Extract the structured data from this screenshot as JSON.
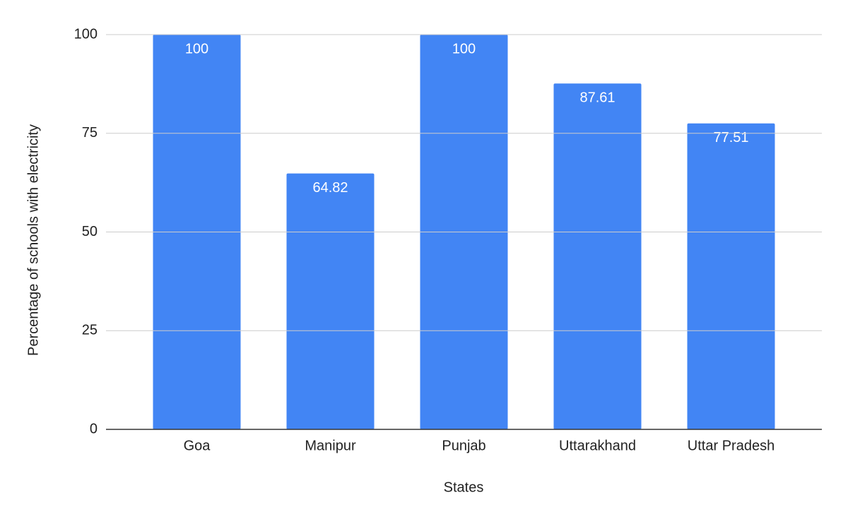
{
  "chart_data": {
    "type": "bar",
    "x_label": "States",
    "y_label": "Percentage of schools with electricity",
    "categories": [
      "Goa",
      "Manipur",
      "Punjab",
      "Uttarakhand",
      "Uttar Pradesh"
    ],
    "values": [
      100,
      64.82,
      100,
      87.61,
      77.51
    ],
    "color": "#4285f4",
    "ylim": [
      0,
      100
    ],
    "yticks": [
      0,
      25,
      50,
      75,
      100
    ],
    "grid": true
  }
}
